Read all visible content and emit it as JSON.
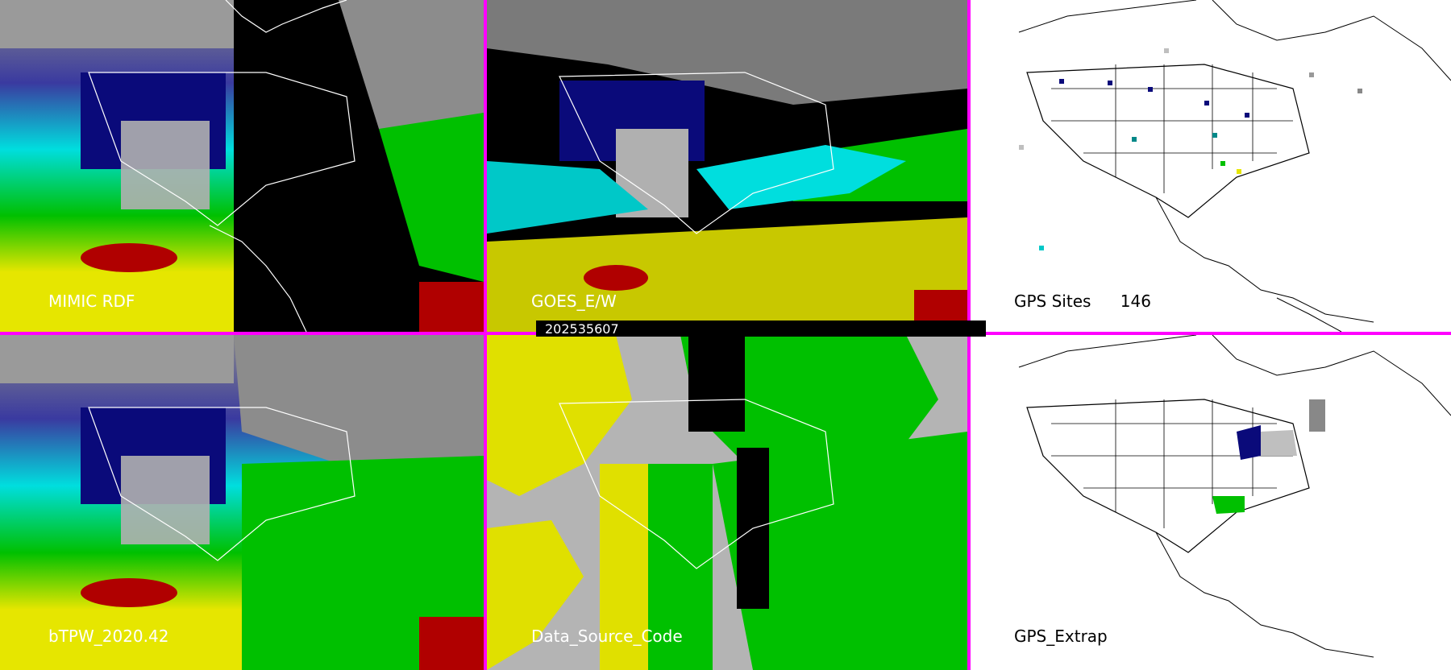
{
  "panels": {
    "mimic": {
      "label": "MIMIC RDF"
    },
    "goes": {
      "label": "GOES_E/W"
    },
    "gps_sites": {
      "label": "GPS Sites",
      "count": "146"
    },
    "btpw": {
      "label": "bTPW_2020.42"
    },
    "data_source": {
      "label": "Data_Source_Code"
    },
    "gps_extrap": {
      "label": "GPS_Extrap"
    }
  },
  "timestamp": "202535607",
  "colors": {
    "divider": "#ff00ff",
    "moisture_low": "#0a0a7a",
    "moisture_mid": "#00e0e0",
    "moisture_green": "#00c000",
    "moisture_yellow": "#e6e600",
    "moisture_high": "#b00000",
    "source_yellow": "#e0e000",
    "source_green": "#00c000",
    "source_gray": "#b4b4b4"
  }
}
